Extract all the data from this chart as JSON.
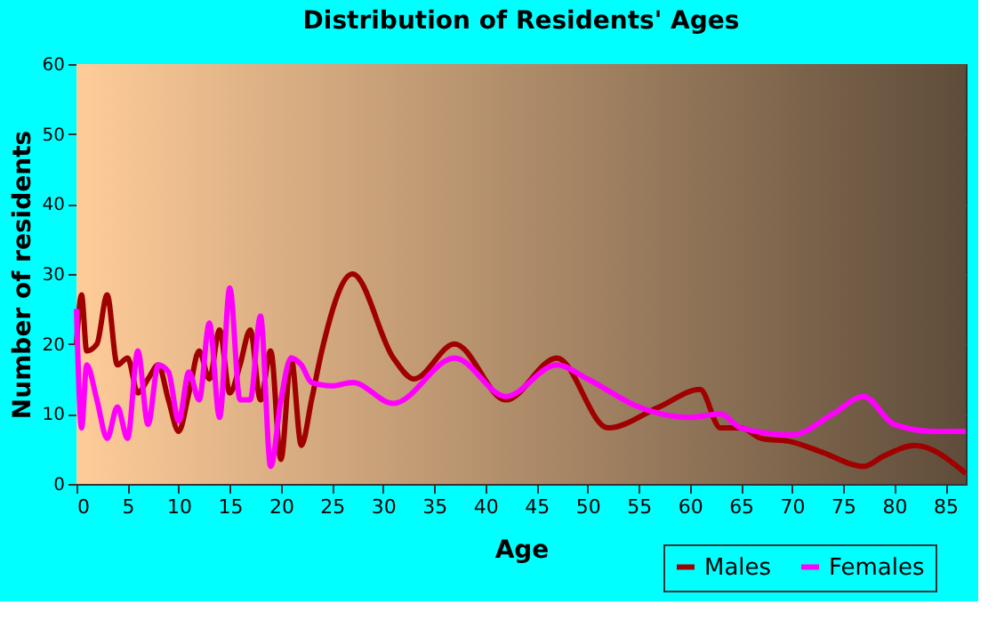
{
  "chart_data": {
    "type": "line",
    "title": "Distribution of Residents' Ages",
    "xlabel": "Age",
    "ylabel": "Number of residents",
    "xlim": [
      0,
      87
    ],
    "xticks": [
      0,
      5,
      10,
      15,
      20,
      25,
      30,
      35,
      40,
      45,
      50,
      55,
      60,
      65,
      70,
      75,
      80,
      85
    ],
    "ylim": [
      0,
      60
    ],
    "yticks": [
      0,
      10,
      20,
      30,
      40,
      50,
      60
    ],
    "grid": true,
    "legend": "bottom right",
    "marker": "none",
    "line_style": "solid",
    "series": [
      {
        "name": "Males",
        "color": "#a00000",
        "x": [
          0,
          0.5,
          1,
          2,
          3,
          4,
          5,
          6,
          7,
          8,
          9,
          10,
          11,
          12,
          13,
          14,
          15,
          16,
          17,
          18,
          19,
          20,
          21,
          22,
          23,
          24,
          27,
          31,
          33,
          37,
          42,
          47,
          52,
          57,
          61,
          63,
          65,
          67,
          70,
          73,
          77,
          79,
          82,
          87
        ],
        "values": [
          20,
          27,
          19,
          20,
          27,
          17,
          18,
          13,
          15,
          17,
          12,
          7.5,
          13,
          19,
          15,
          22,
          13,
          17,
          22,
          12,
          19,
          3.5,
          18,
          5.5,
          12,
          19,
          30,
          18,
          15,
          20,
          12,
          18,
          8,
          11,
          13.5,
          8,
          8,
          6.5,
          6,
          4.5,
          2.5,
          4,
          5.5,
          1.5
        ]
      },
      {
        "name": "Females",
        "color": "#ff00ff",
        "x": [
          0,
          0.5,
          1,
          2,
          3,
          4,
          5,
          6,
          7,
          8,
          9,
          10,
          11,
          12,
          13,
          14,
          15,
          16,
          17,
          18,
          19,
          20,
          21,
          22,
          23,
          25,
          27,
          31,
          37,
          42,
          47,
          50,
          55,
          60,
          63,
          65,
          70,
          74,
          77,
          80,
          84,
          87
        ],
        "values": [
          25,
          8,
          17,
          12,
          6.5,
          11,
          6.5,
          19,
          8.5,
          17,
          16,
          9,
          16,
          12,
          23,
          9.5,
          28,
          12,
          12,
          24,
          2.5,
          12,
          18,
          17,
          14.5,
          14,
          14.5,
          11.5,
          18,
          12.5,
          17,
          15,
          11,
          9.5,
          10,
          8,
          7,
          10,
          12.5,
          8.5,
          7.5,
          7.5
        ]
      }
    ]
  }
}
